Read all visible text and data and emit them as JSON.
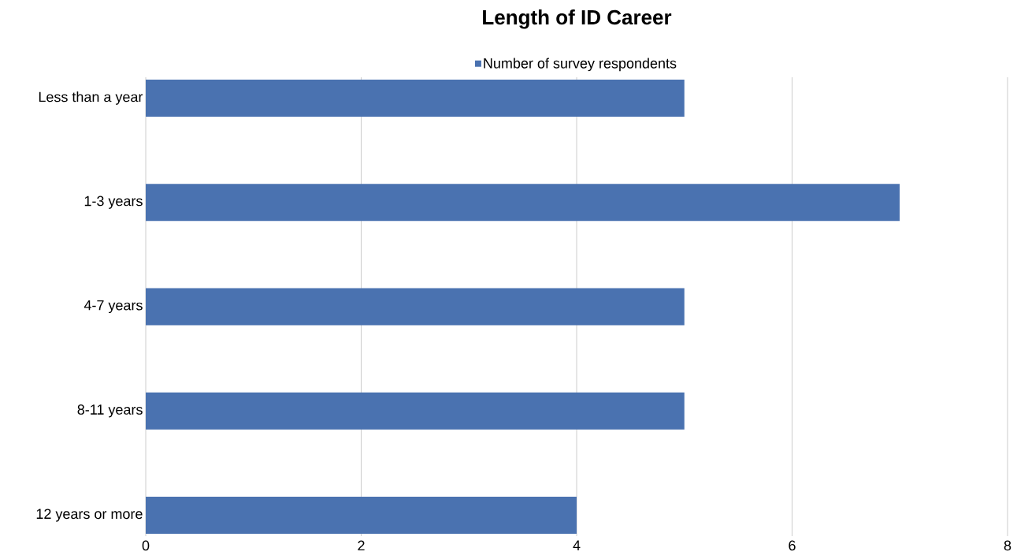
{
  "chart_data": {
    "type": "bar",
    "orientation": "horizontal",
    "title": "Length of ID Career",
    "categories": [
      "Less than a year",
      "1-3 years",
      "4-7 years",
      "8-11 years",
      "12 years or more"
    ],
    "series": [
      {
        "name": "Number of survey respondents",
        "color": "#4a72b0",
        "values": [
          5,
          7,
          5,
          5,
          4
        ]
      }
    ],
    "xlim": [
      0,
      8
    ],
    "xticks": [
      0,
      2,
      4,
      6,
      8
    ],
    "grid": "x",
    "legend": "top"
  }
}
